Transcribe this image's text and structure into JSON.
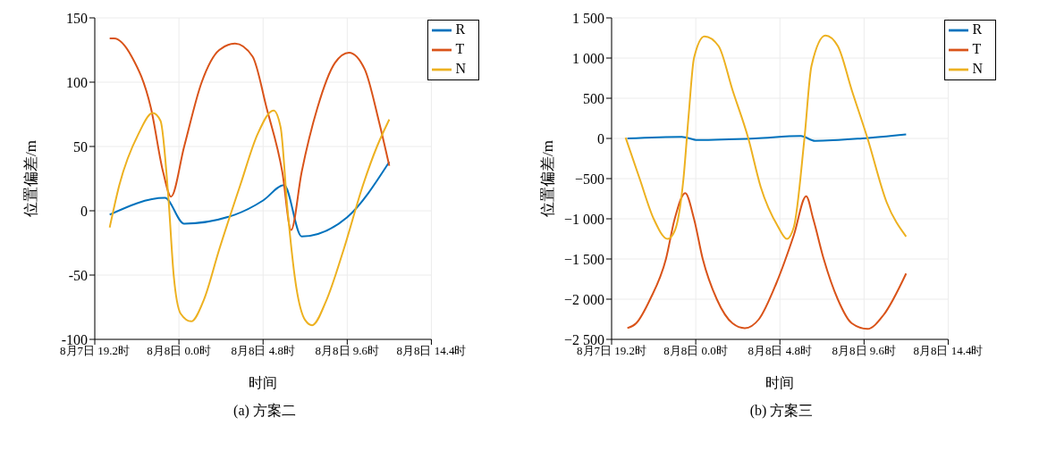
{
  "chart_data": [
    {
      "type": "line",
      "title": "(a) 方案二",
      "xlabel": "时间",
      "ylabel": "位置偏差/m",
      "xlim": [
        "--08-07T19:12",
        "--08-08T14:24"
      ],
      "xticks": [
        {
          "value": "--08-07T19:12",
          "label": "8月7日 19.2时"
        },
        {
          "value": "--08-08T00:00",
          "label": "8月8日 0.0时"
        },
        {
          "value": "--08-08T04:48",
          "label": "8月8日 4.8时"
        },
        {
          "value": "--08-08T09:36",
          "label": "8月8日 9.6时"
        },
        {
          "value": "--08-08T14:24",
          "label": "8月8日 14.4时"
        }
      ],
      "ylim": [
        -100,
        150
      ],
      "yticks": [
        -100,
        -50,
        0,
        50,
        100,
        150
      ],
      "grid": true,
      "legend": "top right",
      "line_style": "solid",
      "series": [
        {
          "name": "R",
          "color": "#0072bd",
          "x": [
            "--08-07T20:03",
            "--08-07T23:12",
            "--08-08T00:18",
            "--08-08T03:12",
            "--08-08T04:48",
            "--08-08T06:00",
            "--08-08T07:00",
            "--08-08T09:36",
            "--08-08T12:00"
          ],
          "values": [
            -3,
            10,
            -10,
            -3,
            8,
            20,
            -20,
            -5,
            38
          ]
        },
        {
          "name": "T",
          "color": "#d95319",
          "x": [
            "--08-07T20:03",
            "--08-07T20:18",
            "--08-07T21:18",
            "--08-07T22:24",
            "--08-07T23:06",
            "--08-07T23:33",
            "--08-08T00:18",
            "--08-08T01:18",
            "--08-08T02:18",
            "--08-08T03:12",
            "--08-08T04:12",
            "--08-08T05:00",
            "--08-08T05:54",
            "--08-08T06:24",
            "--08-08T07:00",
            "--08-08T07:54",
            "--08-08T08:54",
            "--08-08T09:42",
            "--08-08T10:36",
            "--08-08T11:24",
            "--08-08T12:00"
          ],
          "values": [
            134,
            134,
            120,
            80,
            30,
            11,
            50,
            100,
            125,
            130,
            120,
            80,
            30,
            -15,
            30,
            80,
            115,
            123,
            110,
            70,
            35
          ]
        },
        {
          "name": "N",
          "color": "#edb120",
          "x": [
            "--08-07T20:03",
            "--08-07T20:36",
            "--08-07T21:42",
            "--08-07T22:30",
            "--08-07T22:57",
            "--08-07T23:24",
            "--08-07T23:42",
            "--08-08T00:06",
            "--08-08T00:42",
            "--08-08T01:24",
            "--08-08T02:18",
            "--08-08T03:30",
            "--08-08T04:30",
            "--08-08T05:24",
            "--08-08T05:48",
            "--08-08T06:12",
            "--08-08T06:42",
            "--08-08T07:12",
            "--08-08T07:36",
            "--08-08T08:24",
            "--08-08T09:24",
            "--08-08T10:30",
            "--08-08T11:18",
            "--08-08T12:00"
          ],
          "values": [
            -13,
            20,
            60,
            76,
            70,
            10,
            -50,
            -80,
            -86,
            -70,
            -30,
            20,
            60,
            78,
            65,
            0,
            -60,
            -85,
            -89,
            -70,
            -30,
            20,
            50,
            71
          ]
        }
      ]
    },
    {
      "type": "line",
      "title": "(b) 方案三",
      "xlabel": "时间",
      "ylabel": "位置偏差/m",
      "xlim": [
        "--08-07T19:12",
        "--08-08T14:24"
      ],
      "xticks": [
        {
          "value": "--08-07T19:12",
          "label": "8月7日 19.2时"
        },
        {
          "value": "--08-08T00:00",
          "label": "8月8日 0.0时"
        },
        {
          "value": "--08-08T04:48",
          "label": "8月8日 4.8时"
        },
        {
          "value": "--08-08T09:36",
          "label": "8月8日 9.6时"
        },
        {
          "value": "--08-08T14:24",
          "label": "8月8日 14.4时"
        }
      ],
      "ylim": [
        -2500,
        1500
      ],
      "yticks": [
        {
          "value": -2500,
          "label": "−2 500"
        },
        {
          "value": -2000,
          "label": "−2 000"
        },
        {
          "value": -1500,
          "label": "−1 500"
        },
        {
          "value": -1000,
          "label": "−1 000"
        },
        {
          "value": -500,
          "label": "−500"
        },
        {
          "value": 0,
          "label": "0"
        },
        {
          "value": 500,
          "label": "500"
        },
        {
          "value": 1000,
          "label": "1 000"
        },
        {
          "value": 1500,
          "label": "1 500"
        }
      ],
      "grid": true,
      "legend": "top right",
      "line_style": "solid",
      "series": [
        {
          "name": "R",
          "color": "#0072bd",
          "x": [
            "--08-07T20:06",
            "--08-07T23:12",
            "--08-08T00:06",
            "--08-08T03:24",
            "--08-08T06:00",
            "--08-08T06:48",
            "--08-08T09:30",
            "--08-08T12:00"
          ],
          "values": [
            0,
            20,
            -20,
            0,
            30,
            -30,
            0,
            50
          ]
        },
        {
          "name": "T",
          "color": "#d95319",
          "x": [
            "--08-07T20:06",
            "--08-07T20:36",
            "--08-07T21:24",
            "--08-07T22:18",
            "--08-07T22:48",
            "--08-07T23:24",
            "--08-07T23:54",
            "--08-08T00:24",
            "--08-08T01:12",
            "--08-08T02:06",
            "--08-08T02:48",
            "--08-08T03:36",
            "--08-08T04:36",
            "--08-08T05:36",
            "--08-08T06:18",
            "--08-08T06:42",
            "--08-08T07:18",
            "--08-08T08:06",
            "--08-08T08:54",
            "--08-08T09:48",
            "--08-08T10:42",
            "--08-08T12:00"
          ],
          "values": [
            -2360,
            -2300,
            -2000,
            -1500,
            -1000,
            -680,
            -1000,
            -1500,
            -2000,
            -2300,
            -2360,
            -2250,
            -1800,
            -1200,
            -720,
            -1000,
            -1500,
            -2000,
            -2300,
            -2370,
            -2200,
            -1680
          ]
        },
        {
          "name": "N",
          "color": "#edb120",
          "x": [
            "--08-07T20:00",
            "--08-07T20:48",
            "--08-07T21:36",
            "--08-07T22:24",
            "--08-07T22:48",
            "--08-07T23:18",
            "--08-07T23:36",
            "--08-07T23:54",
            "--08-08T00:30",
            "--08-08T01:18",
            "--08-08T02:06",
            "--08-08T03:00",
            "--08-08T03:42",
            "--08-08T04:42",
            "--08-08T05:12",
            "--08-08T05:36",
            "--08-08T06:12",
            "--08-08T06:36",
            "--08-08T07:24",
            "--08-08T08:06",
            "--08-08T08:54",
            "--08-08T09:48",
            "--08-08T10:54",
            "--08-08T12:00"
          ],
          "values": [
            10,
            -500,
            -1000,
            -1250,
            -1150,
            -500,
            300,
            1000,
            1270,
            1150,
            600,
            0,
            -600,
            -1100,
            -1250,
            -1100,
            0,
            900,
            1280,
            1150,
            600,
            0,
            -800,
            -1220
          ]
        }
      ]
    }
  ]
}
